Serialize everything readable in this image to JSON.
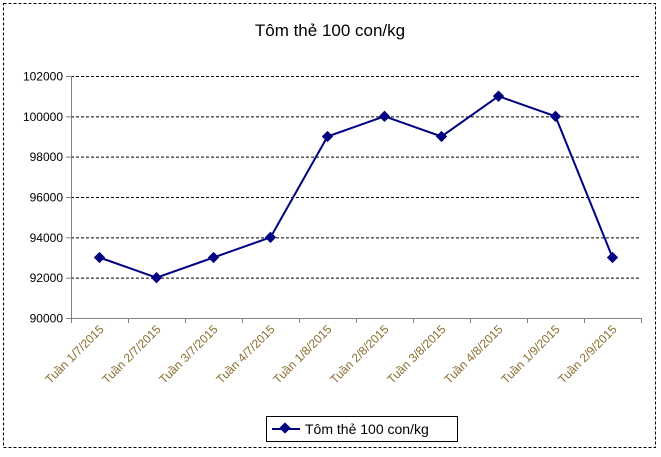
{
  "chart_data": {
    "type": "line",
    "title": "Tôm thẻ 100 con/kg",
    "categories": [
      "Tuần 1/7/2015",
      "Tuần 2/7/2015",
      "Tuần 3/7/2015",
      "Tuần 4/7/2015",
      "Tuần 1/8/2015",
      "Tuần 2/8/2015",
      "Tuần 3/8/2015",
      "Tuần 4/8/2015",
      "Tuần 1/9/2015",
      "Tuần 2/9/2015"
    ],
    "series": [
      {
        "name": "Tôm thẻ 100 con/kg",
        "values": [
          93000,
          92000,
          93000,
          94000,
          99000,
          100000,
          99000,
          101000,
          100000,
          93000
        ]
      }
    ],
    "yticks": [
      "90000",
      "92000",
      "94000",
      "96000",
      "98000",
      "100000",
      "102000"
    ],
    "ylim": [
      90000,
      102000
    ],
    "grid": true,
    "legend": "bottom-center",
    "colors": {
      "series": "#000080",
      "tick_label": "#8a6d2f",
      "grid": "#000000",
      "axis": "#808080"
    }
  }
}
